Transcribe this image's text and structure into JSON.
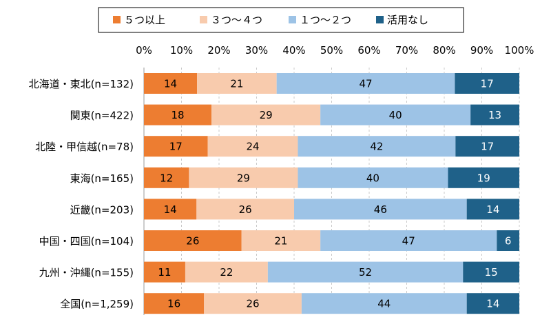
{
  "chart_data": {
    "type": "bar",
    "orientation": "horizontal",
    "stacked": true,
    "percent_stacked": true,
    "categories": [
      "北海道・東北(n=132)",
      "関東(n=422)",
      "北陸・甲信越(n=78)",
      "東海(n=165)",
      "近畿(n=203)",
      "中国・四国(n=104)",
      "九州・沖縄(n=155)",
      "全国(n=1,259)"
    ],
    "series": [
      {
        "name": "５つ以上",
        "color": "#ED7D31",
        "label_color": "#000000",
        "values": [
          14,
          18,
          17,
          12,
          14,
          26,
          11,
          16
        ]
      },
      {
        "name": "３つ～４つ",
        "color": "#F8CBAD",
        "label_color": "#000000",
        "values": [
          21,
          29,
          24,
          29,
          26,
          21,
          22,
          26
        ]
      },
      {
        "name": "１つ～２つ",
        "color": "#9DC3E6",
        "label_color": "#000000",
        "values": [
          47,
          40,
          42,
          40,
          46,
          47,
          52,
          44
        ]
      },
      {
        "name": "活用なし",
        "color": "#1F6189",
        "label_color": "#ffffff",
        "values": [
          17,
          13,
          17,
          19,
          14,
          6,
          15,
          14
        ]
      }
    ],
    "xaxis": {
      "ticks": [
        "0%",
        "10%",
        "20%",
        "30%",
        "40%",
        "50%",
        "60%",
        "70%",
        "80%",
        "90%",
        "100%"
      ],
      "range": [
        0,
        100
      ]
    },
    "grid": "vertical dashed",
    "legend_position": "top"
  }
}
